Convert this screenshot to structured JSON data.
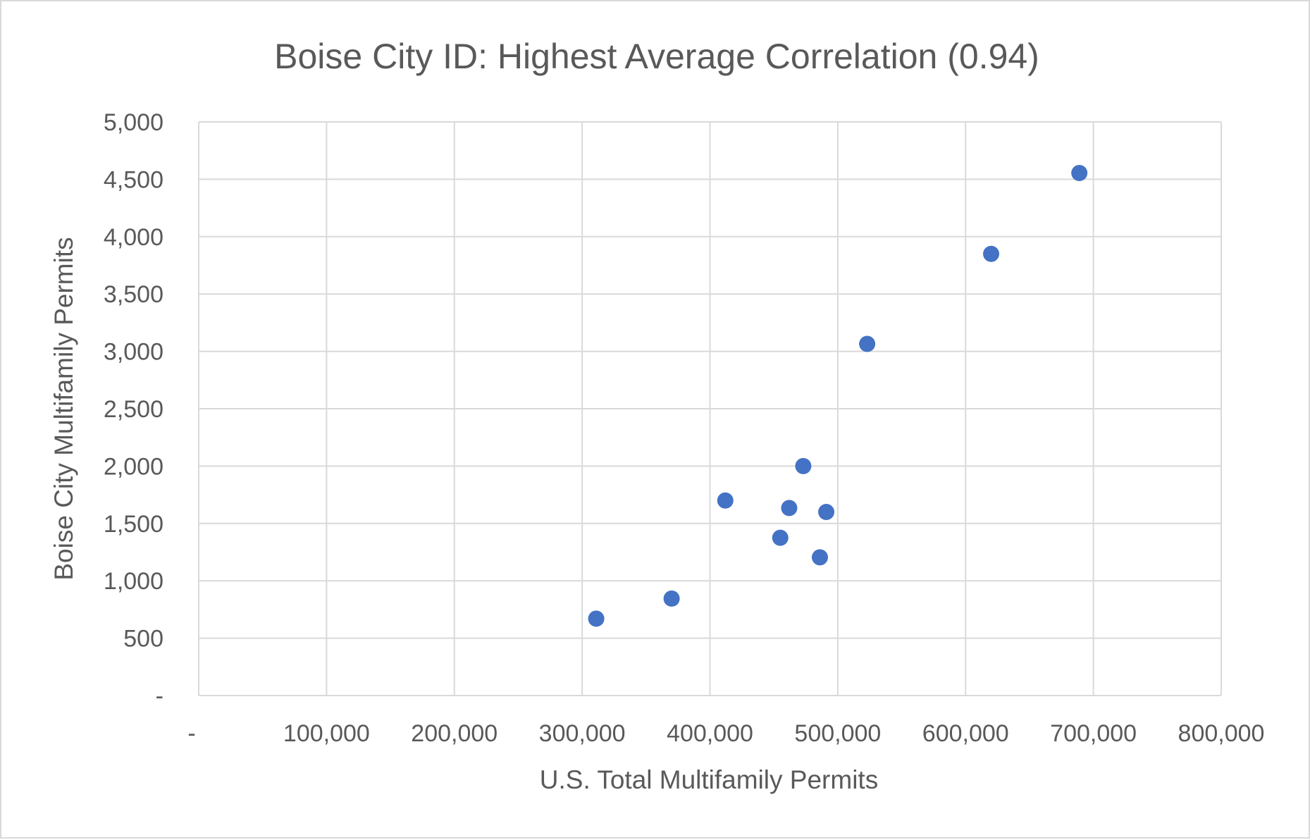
{
  "chart_data": {
    "type": "scatter",
    "title": "Boise City ID: Highest Average Correlation (0.94)",
    "xlabel": "U.S. Total Multifamily Permits",
    "ylabel": "Boise City Multifamily Permits",
    "xlim": [
      0,
      800000
    ],
    "ylim": [
      0,
      5000
    ],
    "x_ticks": [
      0,
      100000,
      200000,
      300000,
      400000,
      500000,
      600000,
      700000,
      800000
    ],
    "x_tick_labels": [
      "-",
      "100,000",
      "200,000",
      "300,000",
      "400,000",
      "500,000",
      "600,000",
      "700,000",
      "800,000"
    ],
    "y_ticks": [
      0,
      500,
      1000,
      1500,
      2000,
      2500,
      3000,
      3500,
      4000,
      4500,
      5000
    ],
    "y_tick_labels": [
      "-",
      "500",
      "1,000",
      "1,500",
      "2,000",
      "2,500",
      "3,000",
      "3,500",
      "4,000",
      "4,500",
      "5,000"
    ],
    "grid": true,
    "marker_color": "#4472c4",
    "gridline_color": "#d9d9d9",
    "series": [
      {
        "points": [
          {
            "x": 311000,
            "y": 670
          },
          {
            "x": 370000,
            "y": 845
          },
          {
            "x": 412000,
            "y": 1700
          },
          {
            "x": 455000,
            "y": 1375
          },
          {
            "x": 462000,
            "y": 1635
          },
          {
            "x": 473000,
            "y": 2000
          },
          {
            "x": 486000,
            "y": 1205
          },
          {
            "x": 491000,
            "y": 1600
          },
          {
            "x": 523000,
            "y": 3065
          },
          {
            "x": 620000,
            "y": 3850
          },
          {
            "x": 689000,
            "y": 4555
          }
        ]
      }
    ]
  }
}
